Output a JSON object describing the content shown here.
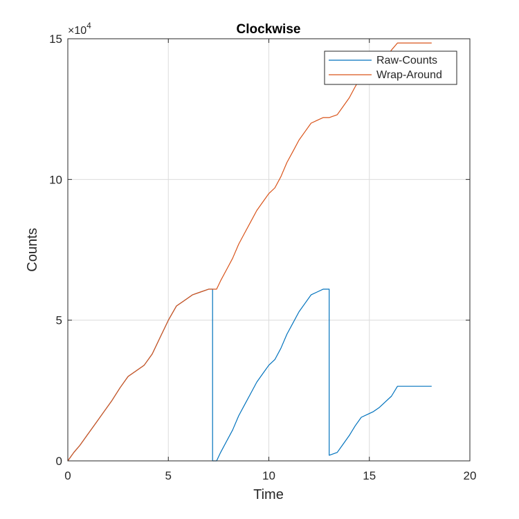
{
  "chart_data": {
    "type": "line",
    "title": "Clockwise",
    "xlabel": "Time",
    "ylabel": "Counts",
    "xlim": [
      0,
      20
    ],
    "ylim": [
      0,
      150000
    ],
    "x_ticks": [
      0,
      5,
      10,
      15,
      20
    ],
    "x_tick_labels": [
      "0",
      "5",
      "10",
      "15",
      "20"
    ],
    "y_ticks": [
      0,
      50000,
      100000,
      150000
    ],
    "y_tick_labels": [
      "0",
      "5",
      "10",
      "15"
    ],
    "y_exponent_base": "×10",
    "y_exponent_power": "4",
    "grid": true,
    "legend_position": "top-right",
    "colors": {
      "raw": "#0072BD",
      "wrap": "#D95319",
      "grid": "#dcdcdc",
      "axis": "#262626"
    },
    "series": [
      {
        "name": "Raw-Counts",
        "color": "#0072BD",
        "x": [
          0,
          0.1,
          0.3,
          0.6,
          1.0,
          1.4,
          1.8,
          2.2,
          2.6,
          3.0,
          3.4,
          3.8,
          4.2,
          4.6,
          5.0,
          5.4,
          5.8,
          6.2,
          6.6,
          7.0,
          7.2,
          7.2,
          7.4,
          7.6,
          7.9,
          8.2,
          8.5,
          8.8,
          9.1,
          9.4,
          9.7,
          10.0,
          10.3,
          10.6,
          10.9,
          11.2,
          11.5,
          11.8,
          12.1,
          12.4,
          12.7,
          13.0,
          13.0,
          13.4,
          13.7,
          14.0,
          14.3,
          14.6,
          14.9,
          15.2,
          15.5,
          15.8,
          16.1,
          16.4,
          17.0,
          18.1
        ],
        "y": [
          0,
          1000,
          3000,
          5500,
          9500,
          13500,
          17500,
          21500,
          26000,
          30000,
          32000,
          34000,
          38000,
          44000,
          50000,
          55000,
          57000,
          59000,
          60000,
          61000,
          61000,
          0,
          0,
          3000,
          7000,
          11000,
          16000,
          20000,
          24000,
          28000,
          31000,
          34000,
          36000,
          40000,
          45000,
          49000,
          53000,
          56000,
          59000,
          60000,
          61000,
          61000,
          2000,
          3000,
          6000,
          9000,
          12500,
          15500,
          16500,
          17500,
          19000,
          21000,
          23000,
          26500,
          26500,
          26500
        ]
      },
      {
        "name": "Wrap-Around",
        "color": "#D95319",
        "x": [
          0,
          0.1,
          0.3,
          0.6,
          1.0,
          1.4,
          1.8,
          2.2,
          2.6,
          3.0,
          3.4,
          3.8,
          4.2,
          4.6,
          5.0,
          5.4,
          5.8,
          6.2,
          6.6,
          7.0,
          7.4,
          7.6,
          7.9,
          8.2,
          8.5,
          8.8,
          9.1,
          9.4,
          9.7,
          10.0,
          10.3,
          10.6,
          10.9,
          11.2,
          11.5,
          11.8,
          12.1,
          12.4,
          12.7,
          13.0,
          13.4,
          13.7,
          14.0,
          14.3,
          14.6,
          14.9,
          15.2,
          15.5,
          15.8,
          16.1,
          16.4,
          17.0,
          18.1
        ],
        "y": [
          0,
          1000,
          3000,
          5500,
          9500,
          13500,
          17500,
          21500,
          26000,
          30000,
          32000,
          34000,
          38000,
          44000,
          50000,
          55000,
          57000,
          59000,
          60000,
          61000,
          61000,
          64000,
          68000,
          72000,
          77000,
          81000,
          85000,
          89000,
          92000,
          95000,
          97000,
          101000,
          106000,
          110000,
          114000,
          117000,
          120000,
          121000,
          122000,
          122000,
          123000,
          126000,
          129000,
          133000,
          136500,
          137500,
          139000,
          140500,
          143000,
          146000,
          148500,
          148500,
          148500
        ]
      }
    ]
  }
}
